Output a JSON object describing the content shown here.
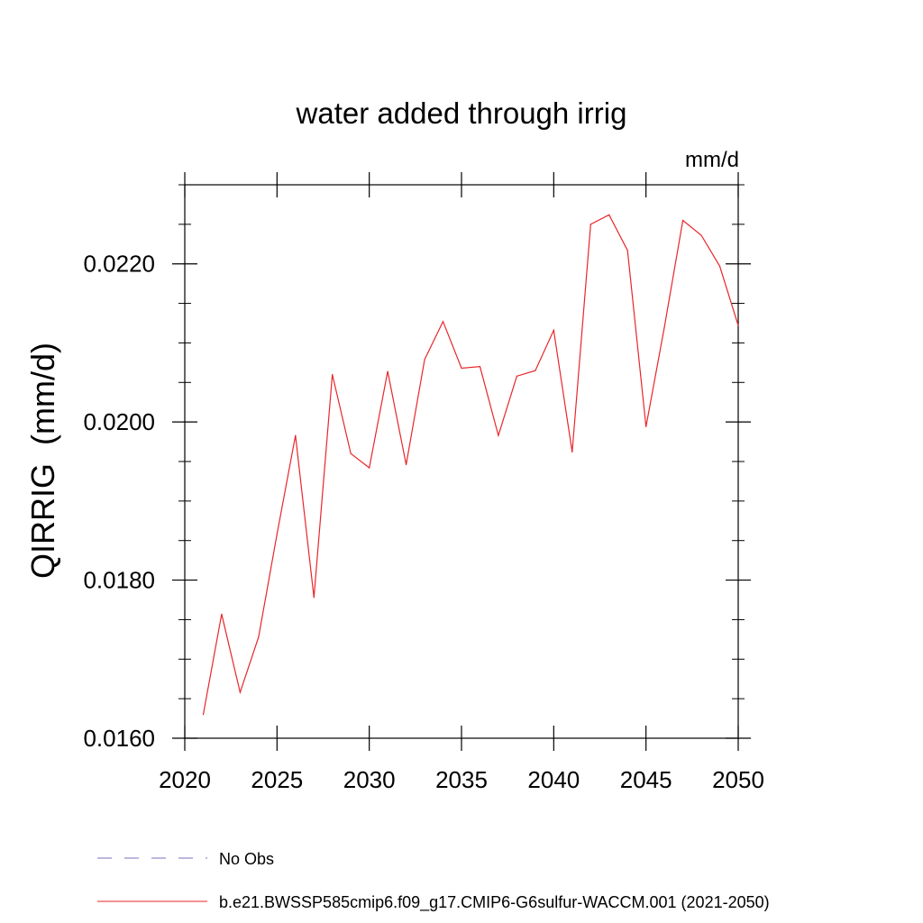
{
  "chart_data": {
    "type": "line",
    "title": "water added through irrig",
    "units_label": "mm/d",
    "ylabel": "QIRRIG  (mm/d)",
    "xlabel": "",
    "xlim": [
      2020,
      2050
    ],
    "ylim": [
      0.016,
      0.023
    ],
    "x_ticks": [
      2020,
      2025,
      2030,
      2035,
      2040,
      2045,
      2050
    ],
    "x_tick_labels": [
      "2020",
      "2025",
      "2030",
      "2035",
      "2040",
      "2045",
      "2050"
    ],
    "y_ticks": [
      0.016,
      0.018,
      0.02,
      0.022
    ],
    "y_tick_labels": [
      "0.0160",
      "0.0180",
      "0.0200",
      "0.0220"
    ],
    "grid": false,
    "legend_position": "bottom",
    "legend": [
      {
        "label": "No Obs",
        "color": "#7b6fc2",
        "dash": "dashed"
      },
      {
        "label": "b.e21.BWSSP585cmip6.f09_g17.CMIP6-G6sulfur-WACCM.001 (2021-2050)",
        "color": "#e8262a",
        "dash": "solid"
      }
    ],
    "series": [
      {
        "name": "b.e21.BWSSP585cmip6.f09_g17.CMIP6-G6sulfur-WACCM.001 (2021-2050)",
        "color": "#e8262a",
        "x": [
          2021,
          2022,
          2023,
          2024,
          2025,
          2026,
          2027,
          2028,
          2029,
          2030,
          2031,
          2032,
          2033,
          2034,
          2035,
          2036,
          2037,
          2038,
          2039,
          2040,
          2041,
          2042,
          2043,
          2044,
          2045,
          2046,
          2047,
          2048,
          2049,
          2050
        ],
        "y": [
          0.0163,
          0.01757,
          0.01658,
          0.01728,
          0.01858,
          0.01983,
          0.01778,
          0.0206,
          0.0196,
          0.01942,
          0.02064,
          0.01946,
          0.02079,
          0.02127,
          0.02068,
          0.0207,
          0.01983,
          0.02058,
          0.02065,
          0.02116,
          0.01962,
          0.0225,
          0.02262,
          0.02217,
          0.01994,
          0.0212,
          0.02255,
          0.02236,
          0.02197,
          0.02122
        ]
      }
    ]
  }
}
